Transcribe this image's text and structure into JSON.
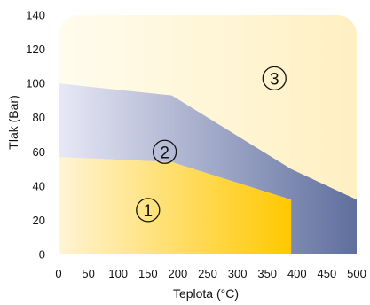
{
  "chart_data": {
    "type": "area",
    "xlabel": "Teplota (°C)",
    "ylabel": "Tlak (Bar)",
    "xlim": [
      0,
      500
    ],
    "ylim": [
      0,
      140
    ],
    "x_ticks": [
      0,
      50,
      100,
      150,
      200,
      250,
      300,
      350,
      400,
      450,
      500
    ],
    "y_ticks": [
      0,
      20,
      40,
      60,
      80,
      100,
      120,
      140
    ],
    "grid": false,
    "colors": {
      "zone1_light": "#fff4d6",
      "zone1_dark": "#ffc800",
      "zone2_light": "#e8e8f6",
      "zone2_dark": "#5f6f9e",
      "zone3_light": "#fffcee",
      "zone3_dark": "#fff0c2"
    },
    "zones": [
      {
        "label": "1",
        "x": [
          0,
          190,
          390,
          390,
          0
        ],
        "y": [
          57,
          54,
          32,
          0,
          0
        ],
        "label_at": [
          150,
          26
        ]
      },
      {
        "label": "2",
        "x": [
          0,
          190,
          390,
          500,
          500,
          390,
          390,
          190,
          0
        ],
        "y": [
          100,
          93,
          50,
          32,
          0,
          0,
          32,
          54,
          57
        ],
        "label_at": [
          178,
          60
        ]
      },
      {
        "label": "3",
        "x": [
          0,
          500
        ],
        "y": [
          140,
          140
        ],
        "label_at": [
          362,
          103
        ]
      }
    ]
  }
}
